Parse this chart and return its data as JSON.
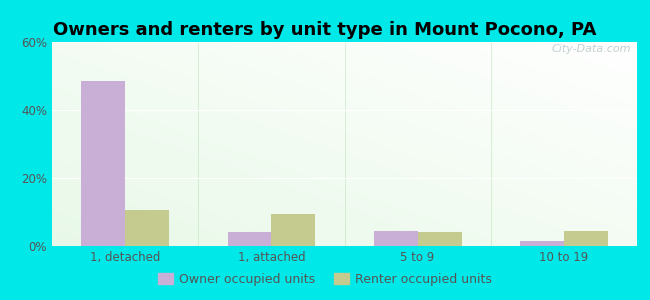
{
  "title": "Owners and renters by unit type in Mount Pocono, PA",
  "categories": [
    "1, detached",
    "1, attached",
    "5 to 9",
    "10 to 19"
  ],
  "owner_values": [
    48.5,
    4.0,
    4.5,
    1.5
  ],
  "renter_values": [
    10.5,
    9.5,
    4.0,
    4.5
  ],
  "owner_color": "#c9aed6",
  "renter_color": "#c5ca8e",
  "ylim": [
    0,
    60
  ],
  "yticks": [
    0,
    20,
    40,
    60
  ],
  "ytick_labels": [
    "0%",
    "20%",
    "40%",
    "60%"
  ],
  "bar_width": 0.3,
  "background_outer": "#00e8e8",
  "title_fontsize": 13,
  "tick_fontsize": 8.5,
  "legend_fontsize": 9,
  "watermark": "City-Data.com"
}
